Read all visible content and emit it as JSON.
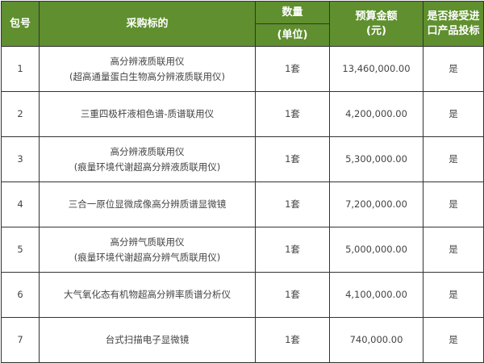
{
  "headers": {
    "package_no": "包号",
    "item": "采购标的",
    "quantity": "数量",
    "unit": "(单位)",
    "budget": "预算金额",
    "budget_unit": "(元)",
    "import_line1": "是否接受进",
    "import_line2": "口产品投标"
  },
  "header_color": "#5f8f2e",
  "rows": [
    {
      "no": "1",
      "item_line1": "高分辨液质联用仪",
      "item_line2": "(超高通量蛋白生物高分辨液质联用仪)",
      "qty": "1套",
      "budget": "13,460,000.00",
      "import": "是"
    },
    {
      "no": "2",
      "item_line1": "三重四极杆液相色谱-质谱联用仪",
      "item_line2": "",
      "qty": "1套",
      "budget": "4,200,000.00",
      "import": "是"
    },
    {
      "no": "3",
      "item_line1": "高分辨液质联用仪",
      "item_line2": "(痕量环境代谢超高分辨液质联用仪)",
      "qty": "1套",
      "budget": "5,300,000.00",
      "import": "是"
    },
    {
      "no": "4",
      "item_line1": "三合一原位显微成像高分辨质谱显微镜",
      "item_line2": "",
      "qty": "1套",
      "budget": "7,200,000.00",
      "import": "是"
    },
    {
      "no": "5",
      "item_line1": "高分辨气质联用仪",
      "item_line2": "(痕量环境代谢超高分辨气质联用仪)",
      "qty": "1套",
      "budget": "5,000,000.00",
      "import": "是"
    },
    {
      "no": "6",
      "item_line1": "大气氧化态有机物超高分辨率质谱分析仪",
      "item_line2": "",
      "qty": "1套",
      "budget": "4,100,000.00",
      "import": "是"
    },
    {
      "no": "7",
      "item_line1": "台式扫描电子显微镜",
      "item_line2": "",
      "qty": "1套",
      "budget": "740,000.00",
      "import": "是"
    }
  ]
}
